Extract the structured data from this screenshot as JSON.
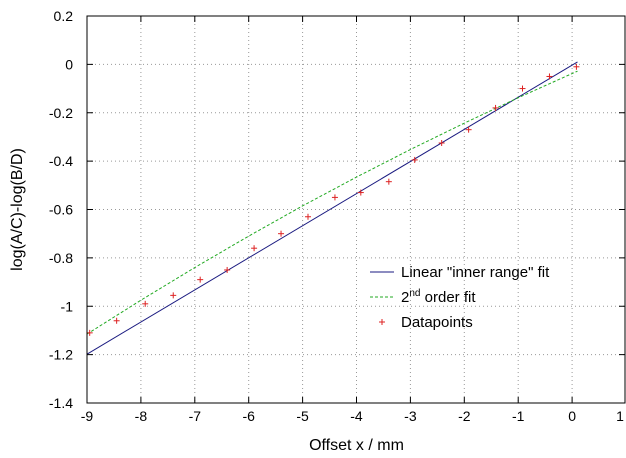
{
  "chart_data": {
    "type": "line",
    "xlabel": "Offset x / mm",
    "ylabel": "log(A/C)-log(B/D)",
    "xlim": [
      -9,
      1
    ],
    "ylim": [
      -1.4,
      0.2
    ],
    "xticks": [
      -9,
      -8,
      -7,
      -6,
      -5,
      -4,
      -3,
      -2,
      -1,
      0,
      1
    ],
    "yticks": [
      -1.4,
      -1.2,
      -1,
      -0.8,
      -0.6,
      -0.4,
      -0.2,
      0,
      0.2
    ],
    "xtick_labels": [
      "-9",
      "-8",
      "-7",
      "-6",
      "-5",
      "-4",
      "-3",
      "-2",
      "-1",
      "0",
      "1"
    ],
    "ytick_labels": [
      "-1.4",
      "-1.2",
      "-1",
      "-0.8",
      "-0.6",
      "-0.4",
      "-0.2",
      "0",
      "0.2"
    ],
    "grid": true,
    "legend_position": "bottom-right",
    "series": [
      {
        "name": "Linear \"inner range\" fit",
        "legend_prefix": "Linear \"inner range\" fit",
        "legend_sup": "",
        "legend_suffix": "",
        "style": "solid-line",
        "color": "#1a1a80",
        "x": [
          -9,
          0.1
        ],
        "y": [
          -1.198,
          0.01
        ]
      },
      {
        "name": "2nd order fit",
        "legend_prefix": "2",
        "legend_sup": "nd",
        "legend_suffix": " order fit",
        "style": "dashed-line",
        "color": "#22aa22",
        "x": [
          -9,
          -8,
          -7,
          -6,
          -5,
          -4,
          -3,
          -2,
          -1,
          0,
          0.1
        ],
        "y": [
          -1.115,
          -0.975,
          -0.84,
          -0.71,
          -0.585,
          -0.466,
          -0.352,
          -0.243,
          -0.138,
          -0.038,
          -0.028
        ]
      },
      {
        "name": "Datapoints",
        "legend_prefix": "Datapoints",
        "legend_sup": "",
        "legend_suffix": "",
        "style": "plus-markers",
        "color": "#dd2222",
        "x": [
          -8.95,
          -8.45,
          -7.92,
          -7.4,
          -6.9,
          -6.4,
          -5.9,
          -5.4,
          -4.9,
          -4.4,
          -3.92,
          -3.4,
          -2.92,
          -2.42,
          -1.92,
          -1.42,
          -0.92,
          -0.42,
          0.08
        ],
        "y": [
          -1.11,
          -1.06,
          -0.99,
          -0.955,
          -0.89,
          -0.85,
          -0.76,
          -0.7,
          -0.63,
          -0.55,
          -0.53,
          -0.485,
          -0.395,
          -0.325,
          -0.27,
          -0.18,
          -0.1,
          -0.05,
          -0.01
        ]
      }
    ]
  }
}
